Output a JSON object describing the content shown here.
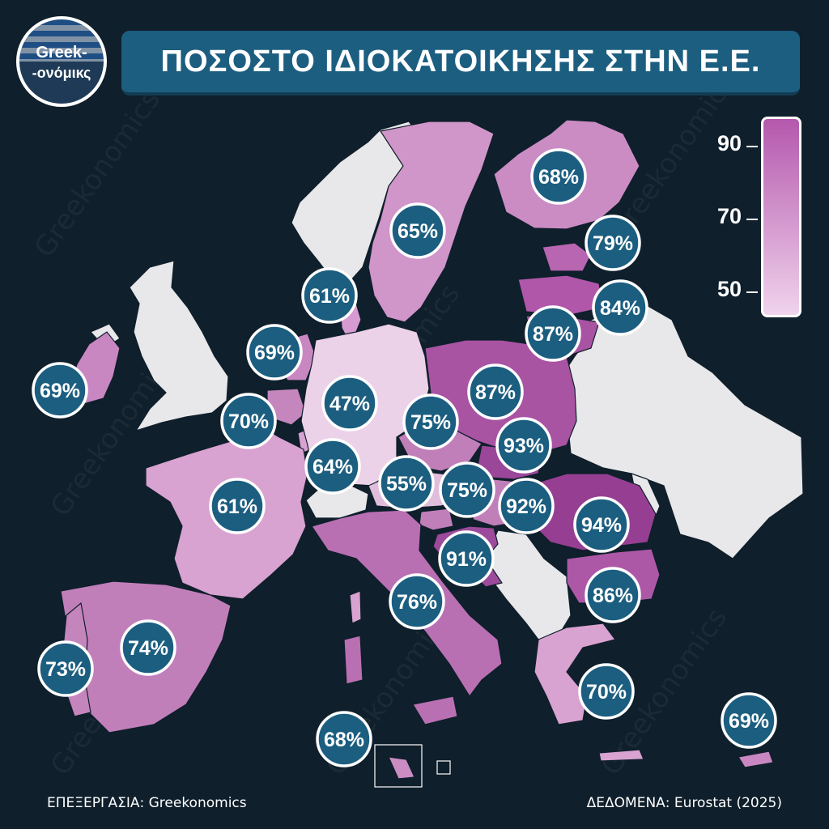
{
  "header": {
    "title": "ΠΟΣΟΣΤΟ ΙΔΙΟΚΑΤΟΙΚΗΣΗΣ ΣΤΗΝ Ε.Ε."
  },
  "logo": {
    "line1": "Greek-",
    "line2": "-ονόμικς"
  },
  "legend": {
    "ticks": [
      "90",
      "70",
      "50"
    ],
    "min": 50,
    "max": 90,
    "color_low": "#f0d3ec",
    "color_high": "#b458ad"
  },
  "footer": {
    "credit": "ΕΠΕΞΕΡΓΑΣΙΑ: Greekonomics",
    "source": "ΔΕΔΟΜΕΝΑ: Eurostat (2025)"
  },
  "watermark": "Greekonomics",
  "colors": {
    "background": "#0f1f2b",
    "non_eu": "#e8e8ea",
    "badge_fill": "#1c5e80",
    "badge_border": "#ffffff",
    "title_bar": "#1c5e80"
  },
  "chart_data": {
    "type": "choropleth",
    "unit": "%",
    "values": [
      {
        "label": "68%",
        "value": 68
      },
      {
        "label": "65%",
        "value": 65
      },
      {
        "label": "79%",
        "value": 79
      },
      {
        "label": "84%",
        "value": 84
      },
      {
        "label": "87%",
        "value": 87
      },
      {
        "label": "61%",
        "value": 61
      },
      {
        "label": "69%",
        "value": 69
      },
      {
        "label": "69%",
        "value": 69
      },
      {
        "label": "70%",
        "value": 70
      },
      {
        "label": "47%",
        "value": 47
      },
      {
        "label": "75%",
        "value": 75
      },
      {
        "label": "87%",
        "value": 87
      },
      {
        "label": "93%",
        "value": 93
      },
      {
        "label": "64%",
        "value": 64
      },
      {
        "label": "55%",
        "value": 55
      },
      {
        "label": "75%",
        "value": 75
      },
      {
        "label": "92%",
        "value": 92
      },
      {
        "label": "94%",
        "value": 94
      },
      {
        "label": "61%",
        "value": 61
      },
      {
        "label": "91%",
        "value": 91
      },
      {
        "label": "76%",
        "value": 76
      },
      {
        "label": "86%",
        "value": 86
      },
      {
        "label": "74%",
        "value": 74
      },
      {
        "label": "73%",
        "value": 73
      },
      {
        "label": "70%",
        "value": 70
      },
      {
        "label": "68%",
        "value": 68
      },
      {
        "label": "69%",
        "value": 69
      }
    ]
  }
}
